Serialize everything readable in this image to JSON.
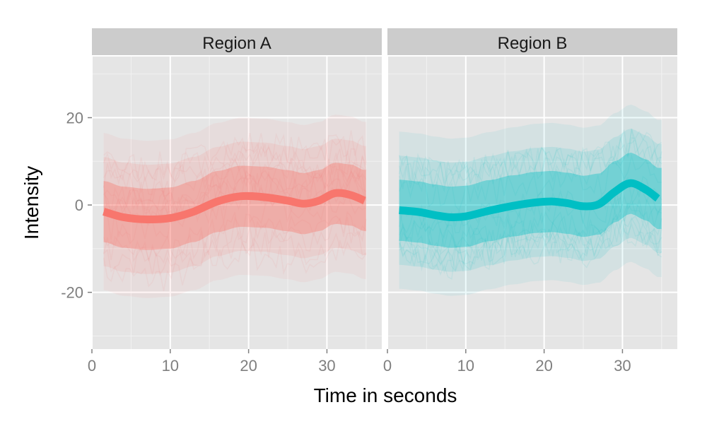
{
  "chart_data": {
    "type": "line",
    "xlabel": "Time in seconds",
    "ylabel": "Intensity",
    "xlim": [
      0,
      37
    ],
    "ylim": [
      -33,
      34
    ],
    "x_ticks": [
      0,
      10,
      20,
      30
    ],
    "y_ticks": [
      -20,
      0,
      20
    ],
    "x_tick_labels": [
      "0",
      "10",
      "20",
      "30"
    ],
    "y_tick_labels": [
      "-20",
      "0",
      "20"
    ],
    "grid": true,
    "legend": "none",
    "panels": [
      {
        "label": "Region A",
        "color": "#F8766D",
        "band": {
          "x_range": [
            1.5,
            35
          ],
          "inner_half_width": 7,
          "outer_half_width": 18
        },
        "smooth": {
          "x": [
            1.5,
            4,
            7,
            10,
            13,
            16,
            19,
            22,
            25,
            27,
            29,
            31,
            33,
            34.8
          ],
          "y": [
            -1.5,
            -2.8,
            -3.3,
            -3,
            -1.5,
            0.8,
            2,
            1.8,
            1,
            0.3,
            1,
            2.7,
            2.3,
            1
          ]
        }
      },
      {
        "label": "Region B",
        "color": "#00BFC4",
        "band": {
          "x_range": [
            1.5,
            35
          ],
          "inner_half_width": 7,
          "outer_half_width": 18
        },
        "smooth": {
          "x": [
            1.5,
            4,
            6,
            8,
            10,
            13,
            16,
            19,
            21,
            23,
            25,
            27,
            29,
            31,
            33,
            34.5
          ],
          "y": [
            -1.2,
            -1.6,
            -2.3,
            -2.8,
            -2.6,
            -1.3,
            -0.2,
            0.6,
            0.8,
            0.4,
            -0.3,
            0.2,
            3,
            5,
            3.5,
            1.5
          ]
        }
      }
    ]
  }
}
